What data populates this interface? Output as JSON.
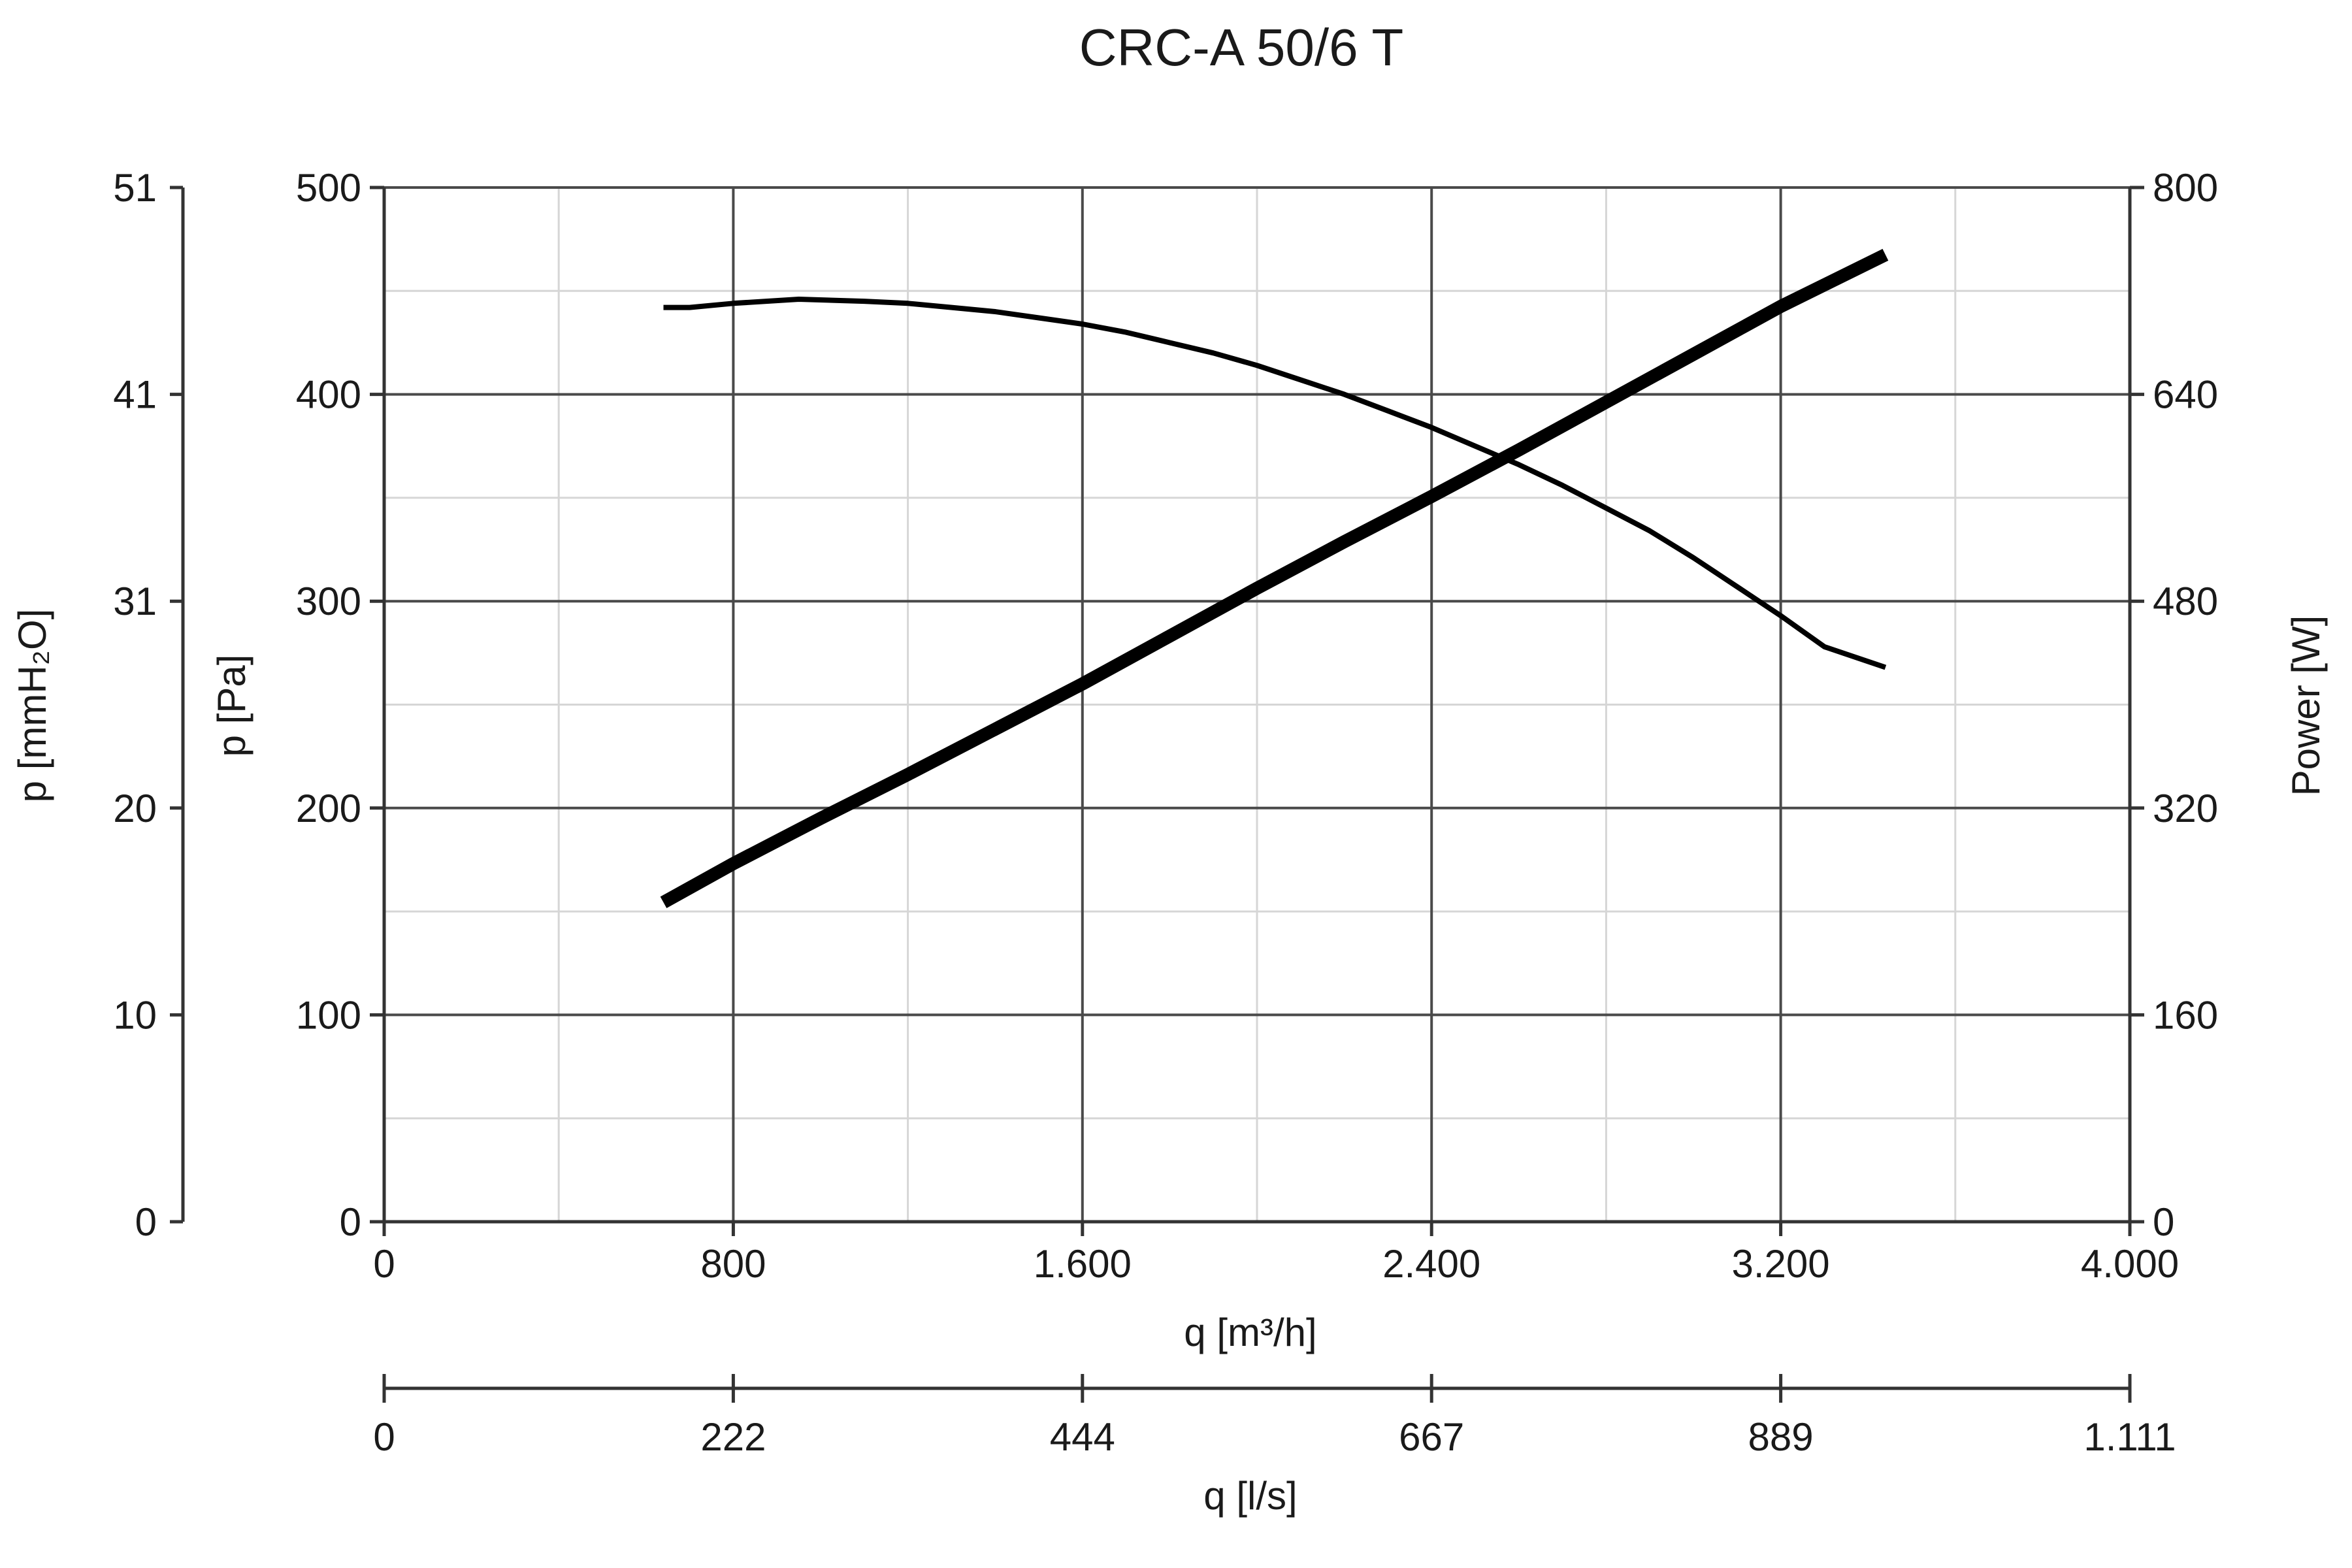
{
  "chart_data": {
    "type": "line",
    "title": "CRC-A 50/6 T",
    "xlabel": "q [m³/h]",
    "x2label": "q [l/s]",
    "ylabel": "p [Pa]",
    "y2label": "p [mmH₂O]",
    "y3label": "Power [W]",
    "xlim": [
      0,
      4000
    ],
    "ylim": [
      0,
      500
    ],
    "powerlim": [
      0,
      800
    ],
    "grid": true,
    "x_ticks": [
      "0",
      "800",
      "1.600",
      "2.400",
      "3.200",
      "4.000"
    ],
    "x2_ticks": [
      "0",
      "222",
      "444",
      "667",
      "889",
      "1.111"
    ],
    "y_ticks": [
      "0",
      "100",
      "200",
      "300",
      "400",
      "500"
    ],
    "y2_ticks": [
      "0",
      "10",
      "20",
      "31",
      "41",
      "51"
    ],
    "power_ticks": [
      "0",
      "160",
      "320",
      "480",
      "640",
      "800"
    ],
    "series": [
      {
        "axis": "pressure",
        "color": "#000000",
        "points": [
          [
            640,
            442
          ],
          [
            700,
            442
          ],
          [
            800,
            444
          ],
          [
            950,
            446
          ],
          [
            1100,
            445
          ],
          [
            1200,
            444
          ],
          [
            1300,
            442
          ],
          [
            1400,
            440
          ],
          [
            1500,
            437
          ],
          [
            1600,
            434
          ],
          [
            1700,
            430
          ],
          [
            1800,
            425
          ],
          [
            1900,
            420
          ],
          [
            2000,
            414
          ],
          [
            2100,
            407
          ],
          [
            2200,
            400
          ],
          [
            2300,
            392
          ],
          [
            2400,
            384
          ],
          [
            2500,
            375
          ],
          [
            2600,
            366
          ],
          [
            2700,
            356
          ],
          [
            2800,
            345
          ],
          [
            2900,
            334
          ],
          [
            3000,
            321
          ],
          [
            3100,
            307
          ],
          [
            3200,
            293
          ],
          [
            3300,
            278
          ],
          [
            3440,
            268
          ]
        ]
      },
      {
        "axis": "power",
        "color": "#000000",
        "points": [
          [
            640,
            247
          ],
          [
            800,
            277
          ],
          [
            1000,
            312
          ],
          [
            1200,
            346
          ],
          [
            1400,
            381
          ],
          [
            1600,
            416
          ],
          [
            1800,
            453
          ],
          [
            2000,
            490
          ],
          [
            2200,
            526
          ],
          [
            2400,
            561
          ],
          [
            2600,
            597
          ],
          [
            2800,
            634
          ],
          [
            3000,
            671
          ],
          [
            3200,
            708
          ],
          [
            3440,
            748
          ]
        ]
      }
    ]
  }
}
